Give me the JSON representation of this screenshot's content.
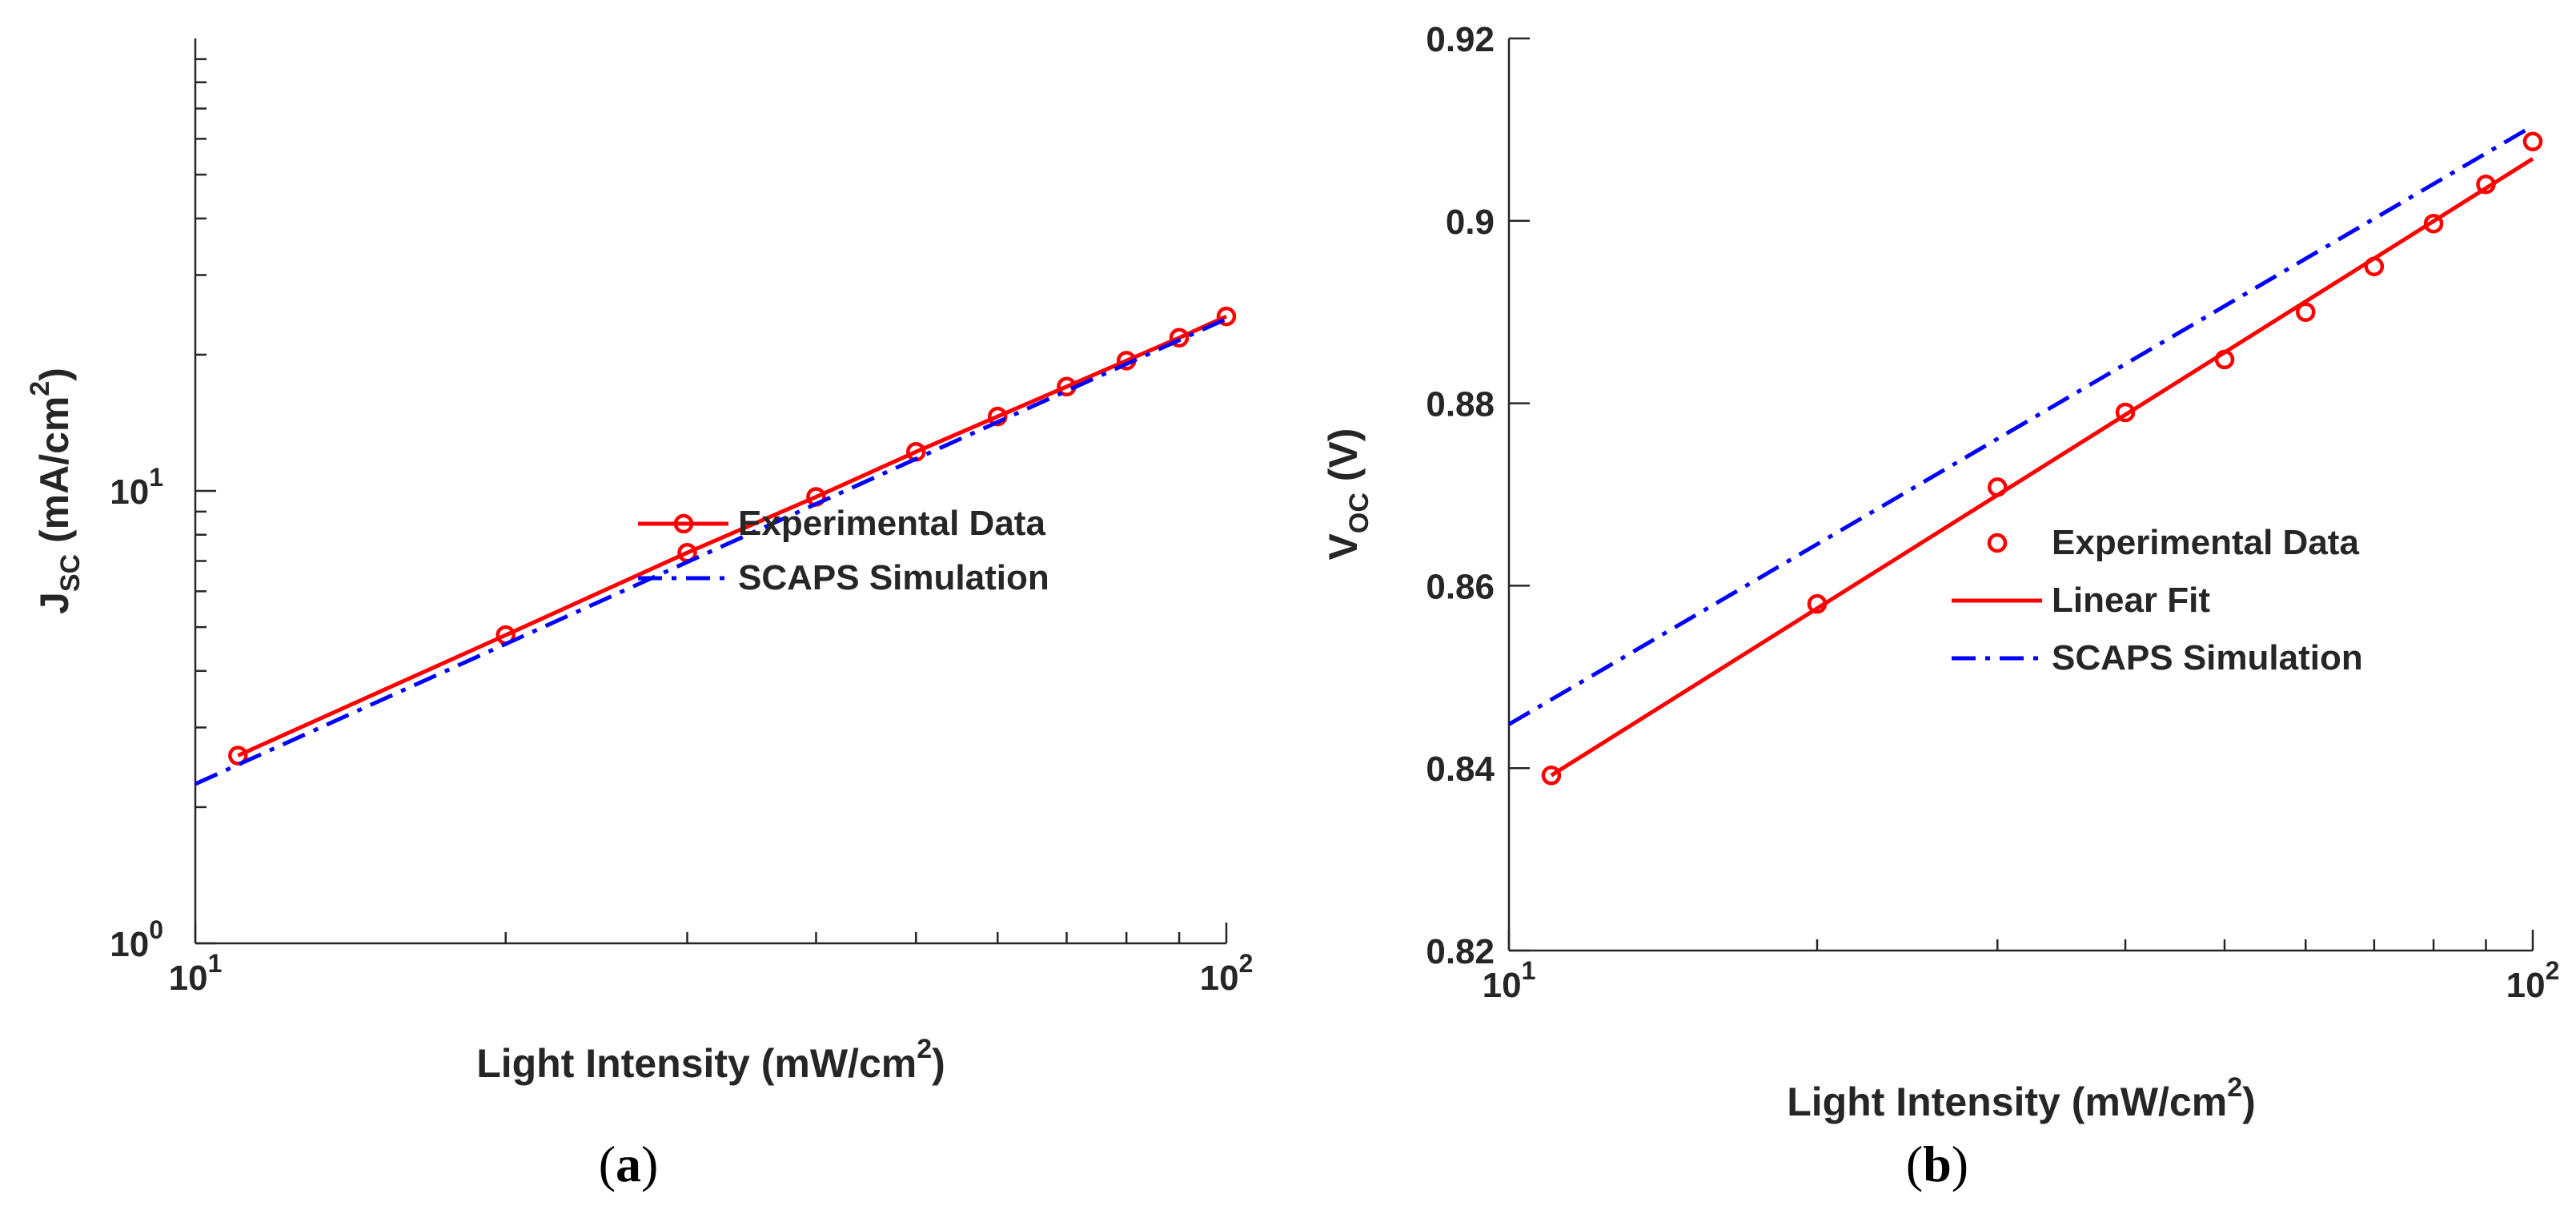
{
  "colors": {
    "experimental": "#ff0000",
    "simulation": "#0000ff",
    "axis": "#262626"
  },
  "chart_data": [
    {
      "panel": "a",
      "caption_letter": "a",
      "caption_open": "(",
      "caption_close": ")",
      "type": "line",
      "xscale": "log",
      "yscale": "log",
      "xlim": [
        10,
        100
      ],
      "ylim": [
        1,
        100
      ],
      "xticks": [
        {
          "value": 10,
          "base": "10",
          "exp": "1"
        },
        {
          "value": 100,
          "base": "10",
          "exp": "2"
        }
      ],
      "yticks": [
        {
          "value": 1,
          "base": "10",
          "exp": "0"
        },
        {
          "value": 10,
          "base": "10",
          "exp": "1"
        }
      ],
      "xlabel": {
        "main": "Light Intensity (mW/cm",
        "sup": "2",
        "end": ")"
      },
      "ylabel": {
        "main": "J",
        "sub": "SC",
        "mid": " (mA/cm",
        "sup": "2",
        "end": ")"
      },
      "legend_position": "middle-right",
      "series": [
        {
          "name": "Experimental Data",
          "style": "line-with-markers",
          "x": [
            11,
            20,
            30,
            40,
            50,
            60,
            70,
            80,
            90,
            100
          ],
          "y": [
            2.6,
            4.8,
            7.3,
            9.7,
            12.2,
            14.6,
            17.0,
            19.4,
            21.8,
            24.3
          ]
        },
        {
          "name": "SCAPS Simulation",
          "style": "dash-dot",
          "x": [
            10,
            100
          ],
          "y": [
            2.25,
            24.0
          ]
        }
      ]
    },
    {
      "panel": "b",
      "caption_letter": "b",
      "caption_open": "(",
      "caption_close": ")",
      "type": "line",
      "xscale": "log",
      "yscale": "linear",
      "xlim": [
        10,
        100
      ],
      "ylim": [
        0.82,
        0.92
      ],
      "xticks": [
        {
          "value": 10,
          "base": "10",
          "exp": "1"
        },
        {
          "value": 100,
          "base": "10",
          "exp": "2"
        }
      ],
      "yticks": [
        {
          "value": 0.82,
          "label": "0.82"
        },
        {
          "value": 0.84,
          "label": "0.84"
        },
        {
          "value": 0.86,
          "label": "0.86"
        },
        {
          "value": 0.88,
          "label": "0.88"
        },
        {
          "value": 0.9,
          "label": "0.9"
        },
        {
          "value": 0.92,
          "label": "0.92"
        }
      ],
      "xlabel": {
        "main": "Light Intensity (mW/cm",
        "sup": "2",
        "end": ")"
      },
      "ylabel": {
        "main": "V",
        "sub": "OC",
        "end": " (V)"
      },
      "legend_position": "middle-right",
      "series": [
        {
          "name": "Experimental Data",
          "style": "markers",
          "x": [
            11,
            20,
            30,
            40,
            50,
            60,
            70,
            80,
            90,
            100
          ],
          "y": [
            0.8392,
            0.858,
            0.8708,
            0.879,
            0.8848,
            0.89,
            0.895,
            0.8997,
            0.904,
            0.9087
          ]
        },
        {
          "name": "Linear Fit",
          "style": "solid",
          "x": [
            11,
            100
          ],
          "y": [
            0.8392,
            0.9068
          ]
        },
        {
          "name": "SCAPS Simulation",
          "style": "dash-dot",
          "x": [
            10,
            100
          ],
          "y": [
            0.8448,
            0.9104
          ]
        }
      ]
    }
  ]
}
